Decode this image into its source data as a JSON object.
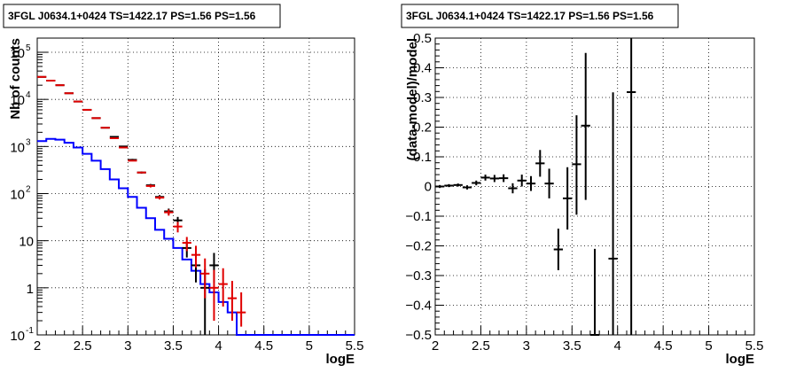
{
  "chart_data": [
    {
      "type": "histogram",
      "title": "3FGL J0634.1+0424 TS=1422.17 PS=1.56 PS=1.56",
      "xlabel": "logE",
      "ylabel": "Nb of counts",
      "xlim": [
        2,
        5.5
      ],
      "ylim": [
        0.1,
        200000
      ],
      "yscale": "log",
      "grid": true,
      "xticks": [
        "2",
        "2.5",
        "3",
        "3.5",
        "4",
        "4.5",
        "5",
        "5.5"
      ],
      "yticks": [
        {
          "value": 0.1,
          "label": "10",
          "sup": "-1"
        },
        {
          "value": 1,
          "label": "1",
          "sup": ""
        },
        {
          "value": 10,
          "label": "10",
          "sup": ""
        },
        {
          "value": 100,
          "label": "10",
          "sup": "2"
        },
        {
          "value": 1000,
          "label": "10",
          "sup": "3"
        },
        {
          "value": 10000,
          "label": "10",
          "sup": "4"
        },
        {
          "value": 100000,
          "label": "10",
          "sup": "5"
        }
      ],
      "bin_width": 0.1,
      "x": [
        2.05,
        2.15,
        2.25,
        2.35,
        2.45,
        2.55,
        2.65,
        2.75,
        2.85,
        2.95,
        3.05,
        3.15,
        3.25,
        3.35,
        3.45,
        3.55,
        3.65,
        3.75,
        3.85,
        3.95,
        4.05,
        4.15,
        4.25,
        4.35
      ],
      "series": [
        {
          "style": "step",
          "color": "#0000ff",
          "values": [
            1300,
            1450,
            1400,
            1200,
            950,
            700,
            500,
            330,
            200,
            130,
            85,
            50,
            30,
            17,
            11,
            7,
            4,
            2.3,
            1.2,
            0.8,
            0.5,
            0.3,
            0.1,
            0.1
          ]
        },
        {
          "style": "errorbar",
          "color": "#000000",
          "values": [
            30000,
            25000,
            20000,
            13500,
            9000,
            6000,
            4000,
            2500,
            1600,
            1000,
            520,
            280,
            150,
            85,
            42,
            27,
            7,
            3,
            1,
            3
          ],
          "err_lo": [
            0,
            0,
            0,
            0,
            0,
            0,
            0,
            0,
            0,
            0,
            25,
            15,
            10,
            8,
            6,
            5,
            2.6,
            1.7,
            0.9,
            1.7
          ],
          "err_hi": [
            0,
            0,
            0,
            0,
            0,
            0,
            0,
            0,
            0,
            0,
            25,
            15,
            10,
            8,
            6,
            5,
            2.6,
            1.7,
            1.5,
            2.5
          ]
        },
        {
          "style": "errorbar",
          "color": "#e00000",
          "values": [
            30000,
            25000,
            20000,
            13500,
            9000,
            6000,
            4000,
            2500,
            1500,
            950,
            500,
            280,
            145,
            82,
            40,
            20,
            9,
            5,
            2,
            1,
            1.2,
            0.6,
            0.3
          ],
          "err_lo": [
            0,
            0,
            0,
            0,
            0,
            0,
            0,
            0,
            0,
            0,
            0,
            0,
            10,
            7,
            6,
            5,
            3,
            2.3,
            1.4,
            0.8,
            0.8,
            0.4,
            0.15
          ],
          "err_hi": [
            0,
            0,
            0,
            0,
            0,
            0,
            0,
            0,
            0,
            0,
            0,
            0,
            10,
            7,
            6,
            5,
            3,
            2.8,
            2.2,
            1.4,
            1.4,
            0.8,
            0.5
          ]
        }
      ]
    },
    {
      "type": "scatter",
      "title": "3FGL J0634.1+0424 TS=1422.17 PS=1.56 PS=1.56",
      "xlabel": "logE",
      "ylabel": "(data-model)/model",
      "xlim": [
        2,
        5.5
      ],
      "ylim": [
        -0.5,
        0.5
      ],
      "grid": true,
      "xticks": [
        "2",
        "2.5",
        "3",
        "3.5",
        "4",
        "4.5",
        "5",
        "5.5"
      ],
      "yticks": [
        "−0.5",
        "−0.4",
        "−0.3",
        "−0.2",
        "−0.1",
        "0",
        "0.1",
        "0.2",
        "0.3",
        "0.4",
        "0.5"
      ],
      "bin_width": 0.1,
      "x": [
        2.05,
        2.15,
        2.25,
        2.35,
        2.45,
        2.55,
        2.65,
        2.75,
        2.85,
        2.95,
        3.05,
        3.15,
        3.25,
        3.35,
        3.45,
        3.55,
        3.65,
        3.75,
        3.95,
        4.15
      ],
      "values": [
        0.0,
        0.003,
        0.005,
        -0.003,
        0.012,
        0.03,
        0.027,
        0.028,
        -0.006,
        0.02,
        0.01,
        0.078,
        0.01,
        -0.212,
        -0.04,
        0.075,
        0.205,
        -0.5,
        -0.243,
        0.318
      ],
      "err_lo": [
        0.005,
        0.005,
        0.005,
        0.007,
        0.008,
        0.01,
        0.012,
        0.013,
        0.017,
        0.02,
        0.025,
        0.045,
        0.05,
        0.07,
        0.105,
        0.17,
        0.25,
        0.3,
        0.45,
        0.9
      ],
      "err_hi": [
        0.005,
        0.005,
        0.005,
        0.007,
        0.008,
        0.01,
        0.012,
        0.013,
        0.017,
        0.02,
        0.025,
        0.045,
        0.05,
        0.07,
        0.105,
        0.165,
        0.245,
        0.29,
        0.56,
        0.9
      ],
      "color": "#000000"
    }
  ]
}
